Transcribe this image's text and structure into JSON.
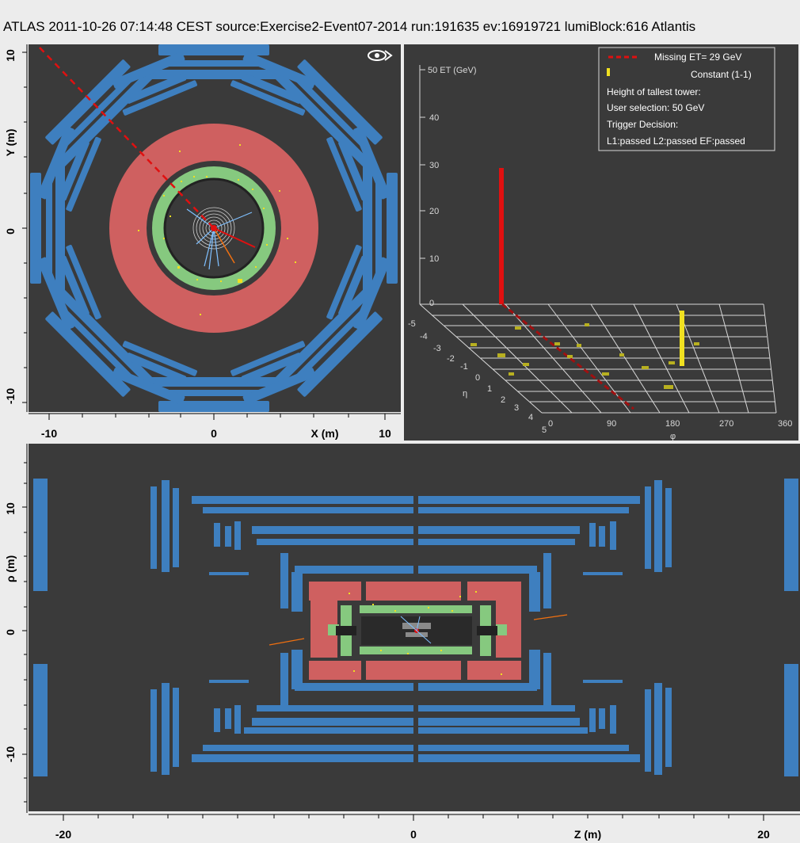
{
  "header": {
    "title": "ATLAS  2011-10-26 07:14:48 CEST source:Exercise2-Event07-2014 run:191635 ev:16919721 lumiBlock:616 Atlantis"
  },
  "xy_view": {
    "y_axis_label": "Y (m)",
    "x_axis_label": "X (m)",
    "y_ticks": [
      "10",
      "0",
      "-10"
    ],
    "x_ticks": [
      "-10",
      "0",
      "10"
    ],
    "fisheye_icon": "fisheye-icon"
  },
  "lego_view": {
    "et_axis_title": "50 ET (GeV)",
    "et_ticks": [
      "40",
      "30",
      "20",
      "10",
      "0"
    ],
    "eta_label": "η",
    "eta_ticks": [
      "-5",
      "-4",
      "-3",
      "-2",
      "-1",
      "0",
      "1",
      "2",
      "3",
      "4",
      "5"
    ],
    "phi_label": "φ",
    "phi_ticks": [
      "0",
      "90",
      "180",
      "270",
      "360"
    ],
    "legend": {
      "missing_et": "Missing ET= 29 GeV",
      "constant": "Constant (1-1)",
      "tallest": "Height of tallest tower:",
      "user_selection": "User selection: 50 GeV",
      "trigger": "Trigger Decision:",
      "trigger_result": "L1:passed L2:passed EF:passed"
    }
  },
  "rz_view": {
    "y_axis_label": "ρ (m)",
    "x_axis_label": "Z (m)",
    "y_ticks": [
      "10",
      "0",
      "-10"
    ],
    "x_ticks": [
      "-20",
      "0",
      "20"
    ]
  },
  "colors": {
    "muon": "#3e7fbf",
    "hadronic": "#cf6060",
    "em": "#86c97f",
    "panel_bg": "#3a3a3a",
    "missing_et": "#e01010",
    "hits": "#f0e020"
  }
}
